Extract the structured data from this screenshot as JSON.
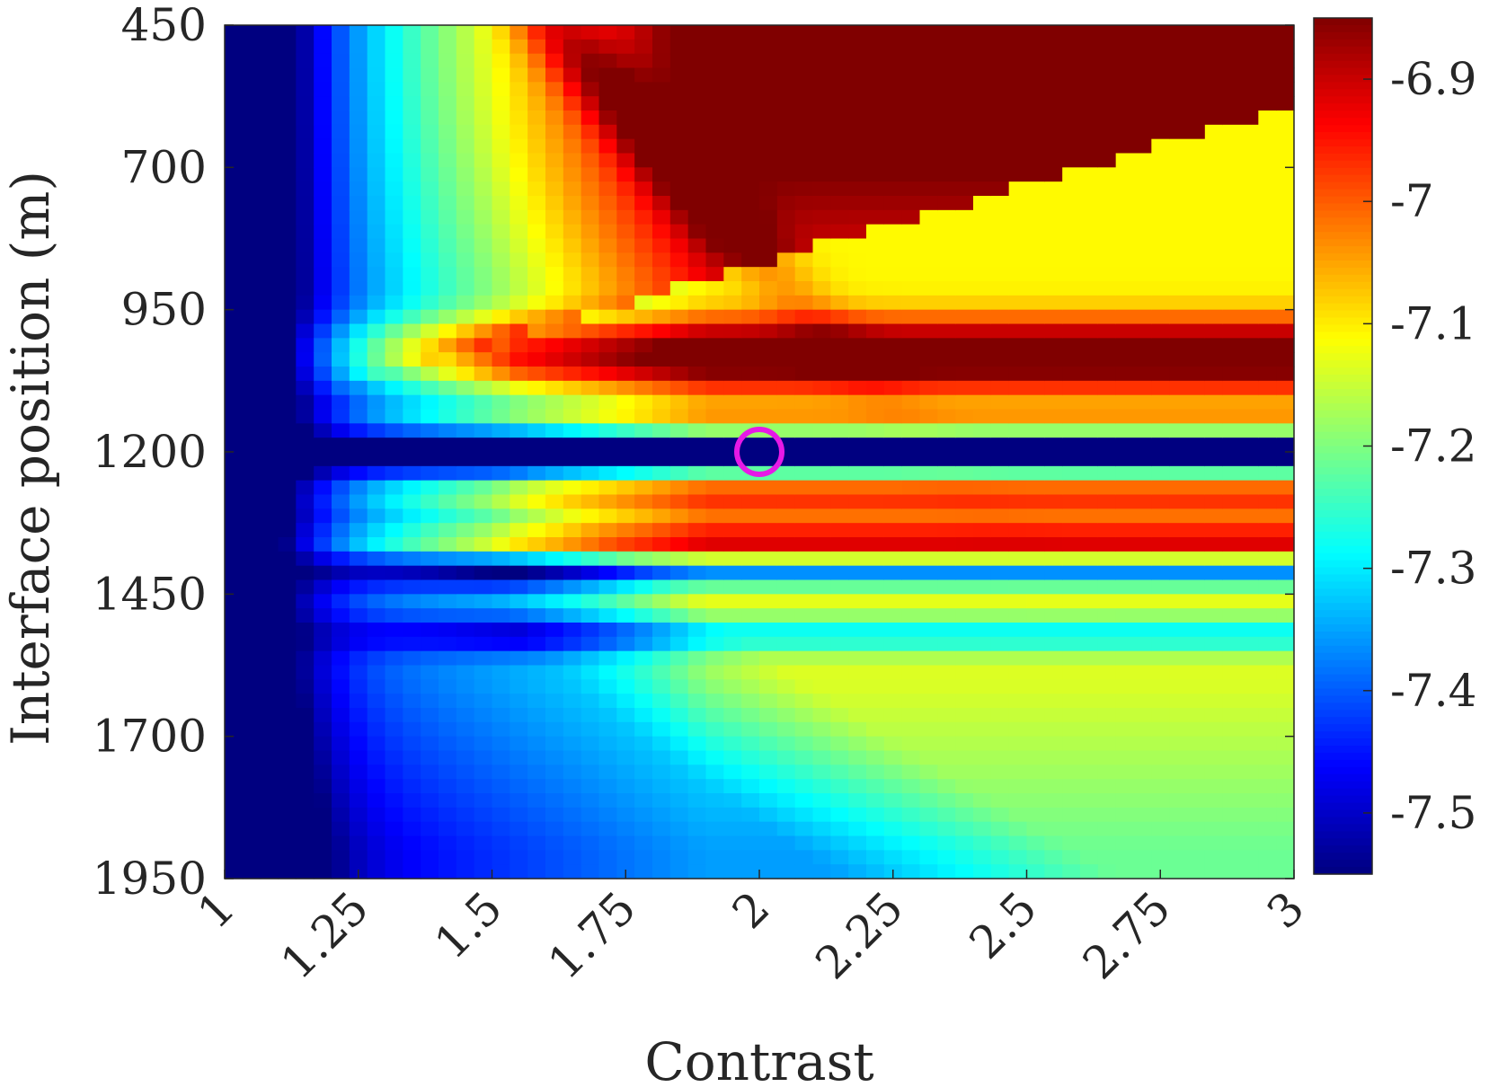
{
  "chart_data": {
    "type": "heatmap",
    "title": "",
    "xlabel": "Contrast",
    "ylabel": "Interface position (m)",
    "x_range": [
      1,
      3
    ],
    "y_range": [
      450,
      1950
    ],
    "y_reversed": true,
    "x_ticks": [
      "1",
      "1.25",
      "1.5",
      "1.75",
      "2",
      "2.25",
      "2.5",
      "2.75",
      "3"
    ],
    "x_tick_values": [
      1,
      1.25,
      1.5,
      1.75,
      2,
      2.25,
      2.5,
      2.75,
      3
    ],
    "y_ticks": [
      "450",
      "700",
      "950",
      "1200",
      "1450",
      "1700",
      "1950"
    ],
    "y_tick_values": [
      450,
      700,
      950,
      1200,
      1450,
      1700,
      1950
    ],
    "colorbar": {
      "colormap": "jet",
      "range": [
        -7.55,
        -6.85
      ],
      "ticks": [
        "-6.9",
        "-7",
        "-7.1",
        "-7.2",
        "-7.3",
        "-7.4",
        "-7.5"
      ],
      "tick_values": [
        -6.9,
        -7.0,
        -7.1,
        -7.2,
        -7.3,
        -7.4,
        -7.5
      ]
    },
    "marker": {
      "shape": "circle",
      "x": 2,
      "y": 1200,
      "color": "#e619e6"
    },
    "grid": false,
    "legend": "none"
  }
}
